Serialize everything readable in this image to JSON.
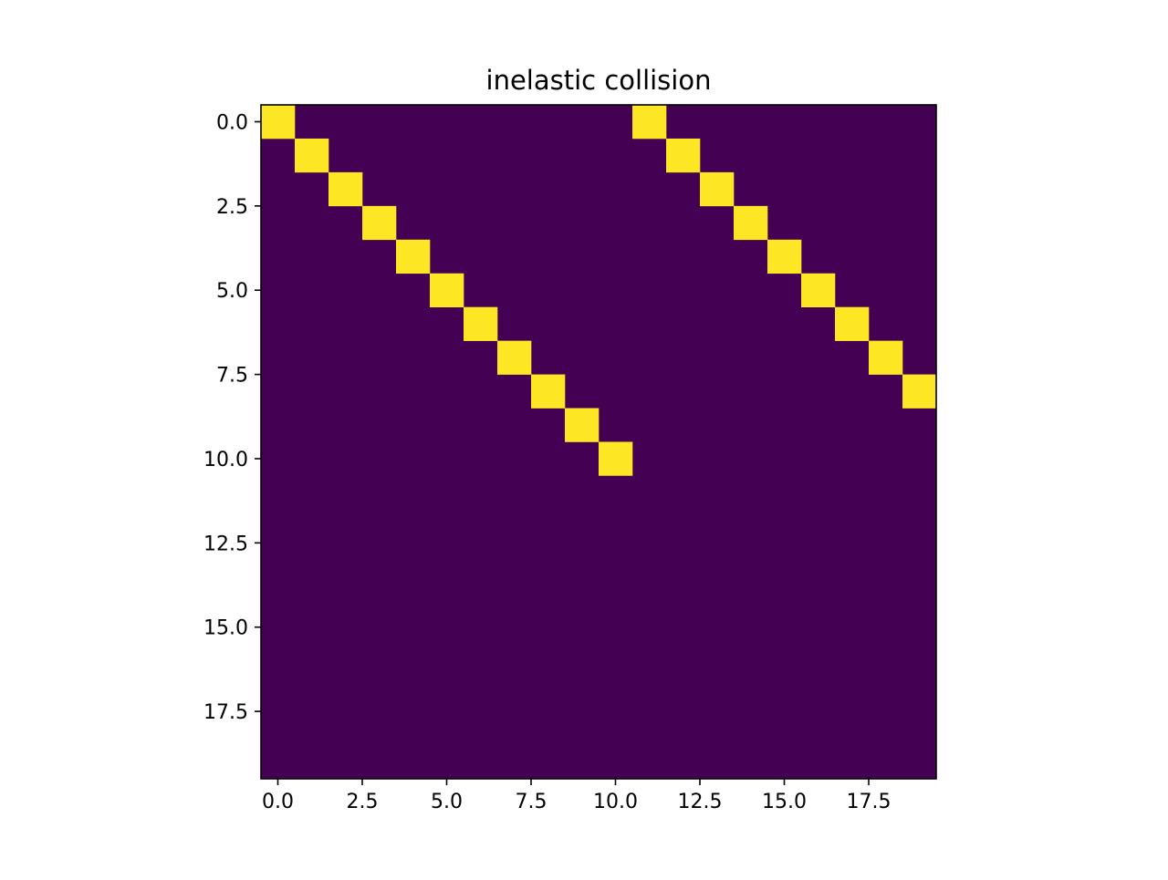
{
  "chart_data": {
    "type": "heatmap",
    "title": "inelastic collision",
    "xlabel": "",
    "ylabel": "",
    "shape": [
      20,
      20
    ],
    "xlim": [
      -0.5,
      19.5
    ],
    "ylim": [
      19.5,
      -0.5
    ],
    "y_axis_inverted": true,
    "grid": false,
    "colormap": "viridis",
    "colors": {
      "low": "#440154",
      "high": "#fde725"
    },
    "value_range": [
      0,
      1
    ],
    "x_ticks": [
      0.0,
      2.5,
      5.0,
      7.5,
      10.0,
      12.5,
      15.0,
      17.5
    ],
    "x_tick_labels": [
      "0.0",
      "2.5",
      "5.0",
      "7.5",
      "10.0",
      "12.5",
      "15.0",
      "17.5"
    ],
    "y_ticks": [
      0.0,
      2.5,
      5.0,
      7.5,
      10.0,
      12.5,
      15.0,
      17.5
    ],
    "y_tick_labels": [
      "0.0",
      "2.5",
      "5.0",
      "7.5",
      "10.0",
      "12.5",
      "15.0",
      "17.5"
    ],
    "hot_cells": [
      {
        "row": 0,
        "col": 0
      },
      {
        "row": 1,
        "col": 1
      },
      {
        "row": 2,
        "col": 2
      },
      {
        "row": 3,
        "col": 3
      },
      {
        "row": 4,
        "col": 4
      },
      {
        "row": 5,
        "col": 5
      },
      {
        "row": 6,
        "col": 6
      },
      {
        "row": 7,
        "col": 7
      },
      {
        "row": 8,
        "col": 8
      },
      {
        "row": 9,
        "col": 9
      },
      {
        "row": 10,
        "col": 10
      },
      {
        "row": 0,
        "col": 11
      },
      {
        "row": 1,
        "col": 12
      },
      {
        "row": 2,
        "col": 13
      },
      {
        "row": 3,
        "col": 14
      },
      {
        "row": 4,
        "col": 15
      },
      {
        "row": 5,
        "col": 16
      },
      {
        "row": 6,
        "col": 17
      },
      {
        "row": 7,
        "col": 18
      },
      {
        "row": 8,
        "col": 19
      }
    ],
    "background_value": 0,
    "hot_value": 1
  }
}
